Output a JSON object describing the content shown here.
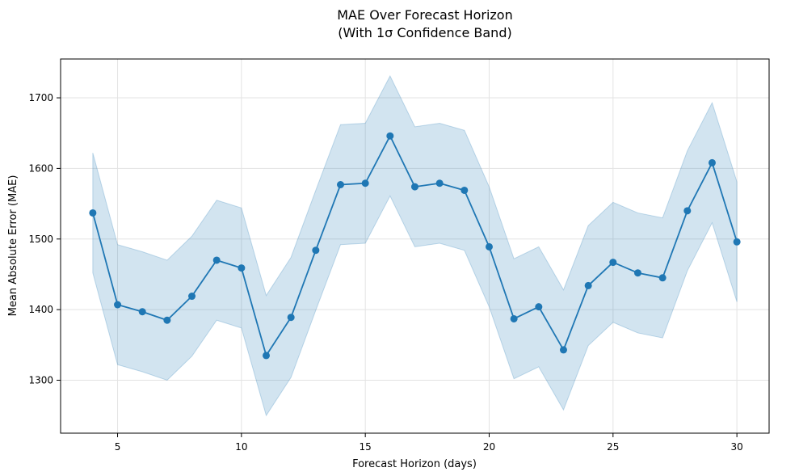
{
  "chart_data": {
    "type": "line",
    "title_lines": [
      "MAE Over Forecast Horizon",
      "(With 1σ Confidence Band)"
    ],
    "xlabel": "Forecast Horizon (days)",
    "ylabel": "Mean Absolute Error (MAE)",
    "xlim": [
      2.7,
      31.3
    ],
    "ylim": [
      1225,
      1755
    ],
    "x_ticks": [
      5,
      10,
      15,
      20,
      25,
      30
    ],
    "y_ticks": [
      1300,
      1400,
      1500,
      1600,
      1700
    ],
    "grid": true,
    "legend": "none",
    "colors": {
      "line": "#1f77b4",
      "band": "#1f77b4",
      "band_opacity": 0.2,
      "grid": "#e3e3e3",
      "axis": "#000000"
    },
    "series": [
      {
        "x": [
          4,
          5,
          6,
          7,
          8,
          9,
          10,
          11,
          12,
          13,
          14,
          15,
          16,
          17,
          18,
          19,
          20,
          21,
          22,
          23,
          24,
          25,
          26,
          27,
          28,
          29,
          30
        ],
        "values": [
          1537,
          1407,
          1397,
          1385,
          1419,
          1470,
          1459,
          1335,
          1389,
          1484,
          1577,
          1579,
          1646,
          1574,
          1579,
          1569,
          1489,
          1387,
          1404,
          1343,
          1434,
          1467,
          1452,
          1445,
          1540,
          1608,
          1496
        ],
        "band_lower": [
          1452,
          1322,
          1312,
          1300,
          1334,
          1385,
          1374,
          1250,
          1304,
          1399,
          1492,
          1494,
          1561,
          1489,
          1494,
          1484,
          1404,
          1302,
          1319,
          1258,
          1349,
          1382,
          1367,
          1360,
          1455,
          1523,
          1411
        ],
        "band_upper": [
          1622,
          1492,
          1482,
          1470,
          1504,
          1555,
          1544,
          1420,
          1474,
          1569,
          1662,
          1664,
          1731,
          1659,
          1664,
          1654,
          1574,
          1472,
          1489,
          1428,
          1519,
          1552,
          1537,
          1530,
          1625,
          1693,
          1581
        ]
      }
    ]
  }
}
